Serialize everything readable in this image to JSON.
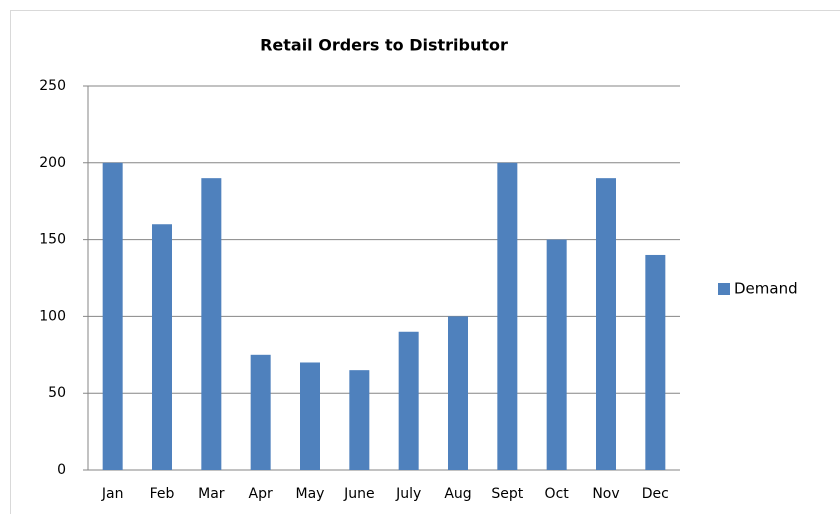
{
  "chart_data": {
    "type": "bar",
    "title": "Retail Orders to Distributor",
    "categories": [
      "Jan",
      "Feb",
      "Mar",
      "Apr",
      "May",
      "June",
      "July",
      "Aug",
      "Sept",
      "Oct",
      "Nov",
      "Dec"
    ],
    "series": [
      {
        "name": "Demand",
        "color": "#4f81bd",
        "values": [
          200,
          160,
          190,
          75,
          70,
          65,
          90,
          100,
          200,
          150,
          190,
          140
        ]
      }
    ],
    "ylim": [
      0,
      250
    ],
    "yticks": [
      0,
      50,
      100,
      150,
      200,
      250
    ],
    "grid": true,
    "legend": "right"
  }
}
